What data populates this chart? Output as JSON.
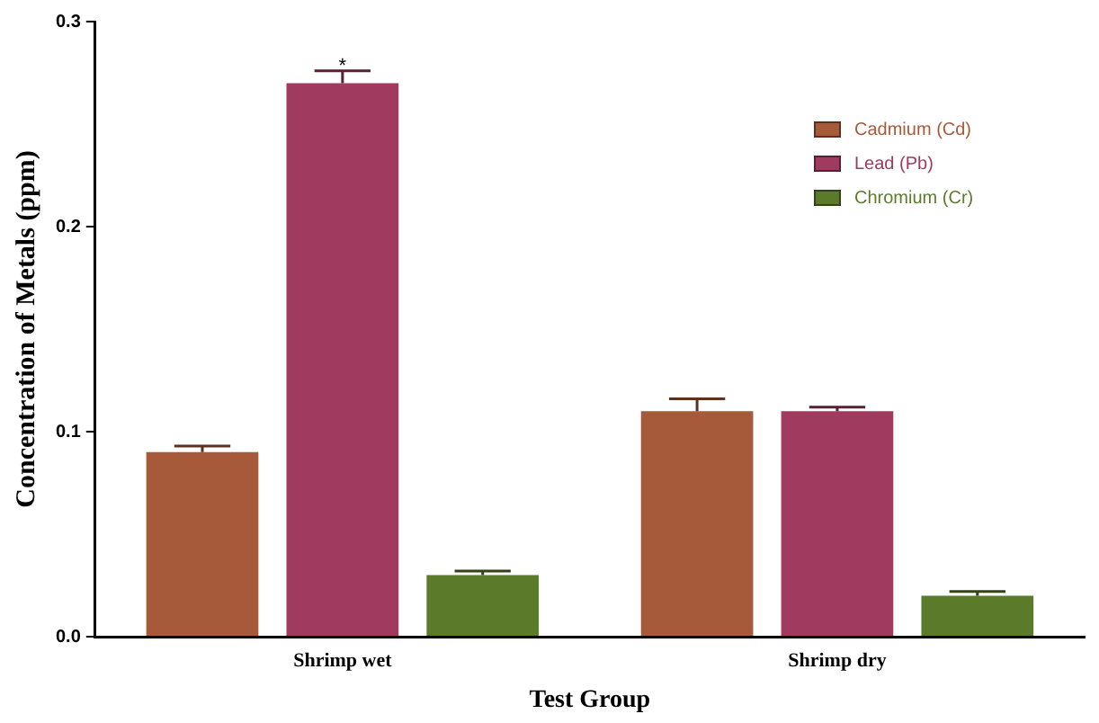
{
  "chart_data": {
    "type": "bar",
    "xlabel": "Test Group",
    "ylabel": "Concentration of Metals (ppm)",
    "categories": [
      "Shrimp wet",
      "Shrimp dry"
    ],
    "series": [
      {
        "name": "Cadmium (Cd)",
        "color": "#a65a3a",
        "values": [
          0.09,
          0.11
        ],
        "errors": [
          [
            0.09,
            0.093
          ],
          [
            0.11,
            0.116
          ]
        ]
      },
      {
        "name": "Lead (Pb)",
        "color": "#a03a5e",
        "values": [
          0.27,
          0.11
        ],
        "errors": [
          [
            0.27,
            0.276
          ],
          [
            0.11,
            0.112
          ]
        ]
      },
      {
        "name": "Chromium (Cr)",
        "color": "#5b7a2a",
        "values": [
          0.03,
          0.02
        ],
        "errors": [
          [
            0.03,
            0.032
          ],
          [
            0.02,
            0.022
          ]
        ]
      }
    ],
    "ylim": [
      0,
      0.3
    ],
    "yticks": [
      {
        "value": 0,
        "label": "0.0"
      },
      {
        "value": 0.1,
        "label": "0.1"
      },
      {
        "value": 0.2,
        "label": "0.2"
      },
      {
        "value": 0.3,
        "label": "0.3"
      }
    ],
    "grid": false,
    "legend": "top right",
    "annotations": [
      {
        "text": "*",
        "x": "Shrimp wet",
        "y": 0.279
      }
    ]
  }
}
